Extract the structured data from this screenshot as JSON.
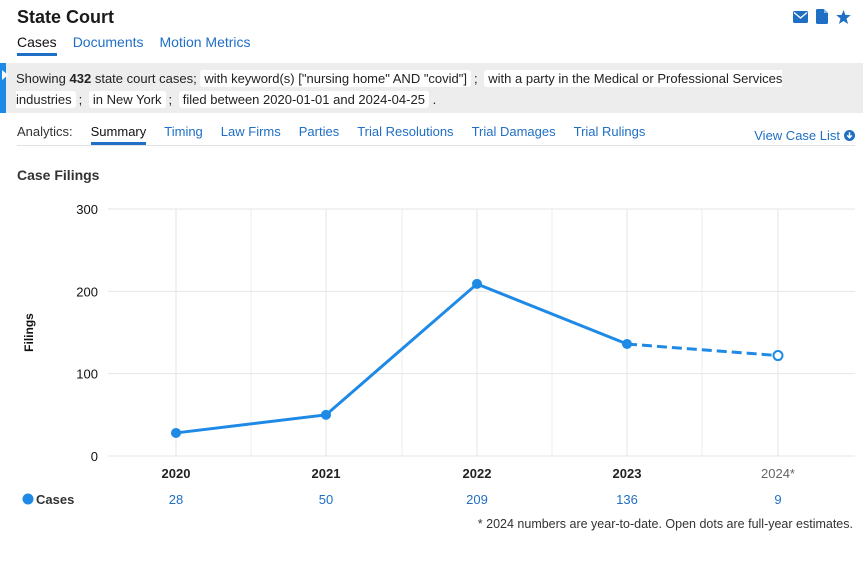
{
  "header": {
    "title": "State Court"
  },
  "icons": [
    "envelope-icon",
    "document-icon",
    "star-icon"
  ],
  "tabs": [
    {
      "label": "Cases",
      "active": true
    },
    {
      "label": "Documents",
      "active": false
    },
    {
      "label": "Motion Metrics",
      "active": false
    }
  ],
  "filters": {
    "showing_prefix": "Showing",
    "count": "432",
    "showing_suffix": "state court cases;",
    "chips": [
      "with keyword(s) [\"nursing home\" AND \"covid\"]",
      "with a party in the Medical or Professional Services industries",
      "in New York",
      "filed between 2020-01-01 and 2024-04-25"
    ],
    "separator": ";",
    "end": "."
  },
  "analytics": {
    "label": "Analytics:",
    "tabs": [
      {
        "label": "Summary",
        "active": true
      },
      {
        "label": "Timing",
        "active": false
      },
      {
        "label": "Law Firms",
        "active": false
      },
      {
        "label": "Parties",
        "active": false
      },
      {
        "label": "Trial Resolutions",
        "active": false
      },
      {
        "label": "Trial Damages",
        "active": false
      },
      {
        "label": "Trial Rulings",
        "active": false
      }
    ],
    "view_list": "View Case List"
  },
  "section_title": "Case Filings",
  "chart_data": {
    "type": "line",
    "categories": [
      "2020",
      "2021",
      "2022",
      "2023",
      "2024*"
    ],
    "series": [
      {
        "name": "Cases",
        "values": [
          28,
          50,
          209,
          136,
          9
        ],
        "plotted": [
          28,
          50,
          209,
          136,
          122
        ]
      }
    ],
    "estimate_index": 4,
    "ylabel": "Filings",
    "yticks": [
      0,
      100,
      200,
      300
    ],
    "ylim": [
      0,
      300
    ],
    "grid": true,
    "color": "#1f8ae6"
  },
  "footnote": "* 2024 numbers are year-to-date. Open dots are full-year estimates."
}
